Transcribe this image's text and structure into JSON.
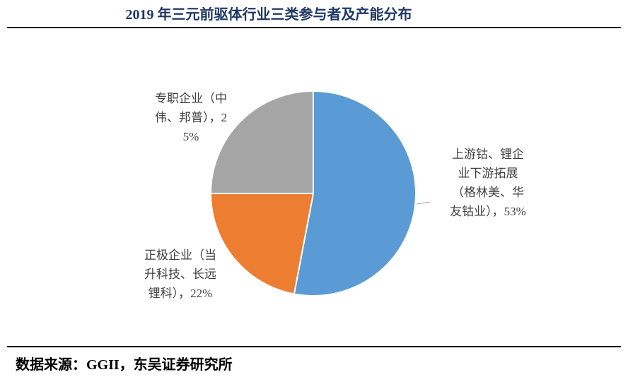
{
  "chart_data": {
    "type": "pie",
    "title": "2019 年三元前驱体行业三类参与者及产能分布",
    "categories": [
      "上游钴、锂企业下游拓展（格林美、华友钴业），",
      "正极企业（当升科技、长远锂科），",
      "专职企业（中伟、邦普），"
    ],
    "values": [
      53,
      22,
      25
    ],
    "value_labels": [
      "53%",
      "22%",
      "25%"
    ],
    "colors": [
      "#5b9bd5",
      "#ed7d31",
      "#a5a5a5"
    ],
    "source": "数据来源：GGII，东吴证券研究所"
  }
}
